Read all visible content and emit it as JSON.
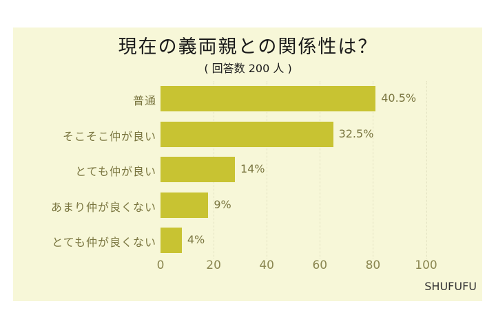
{
  "chart_data": {
    "type": "bar",
    "orientation": "horizontal",
    "title": "現在の義両親との関係性は？",
    "subtitle": "( 回答数 200 人 )",
    "categories": [
      "普通",
      "そこそこ仲が良い",
      "とても仲が良い",
      "あまり仲が良くない",
      "とても仲が良くない"
    ],
    "values": [
      40.5,
      32.5,
      14,
      9,
      4
    ],
    "value_labels": [
      "40.5%",
      "32.5%",
      "14%",
      "9%",
      "4%"
    ],
    "bar_lengths_on_axis": [
      81,
      65,
      28,
      18,
      8
    ],
    "xlabel": "",
    "ylabel": "",
    "xlim": [
      0,
      100
    ],
    "x_ticks": [
      "0",
      "20",
      "40",
      "60",
      "80",
      "100"
    ],
    "grid": true,
    "legend": null,
    "bar_color": "#c8c332",
    "background_color": "#f7f7d8"
  },
  "brand": "SHUFUFU"
}
